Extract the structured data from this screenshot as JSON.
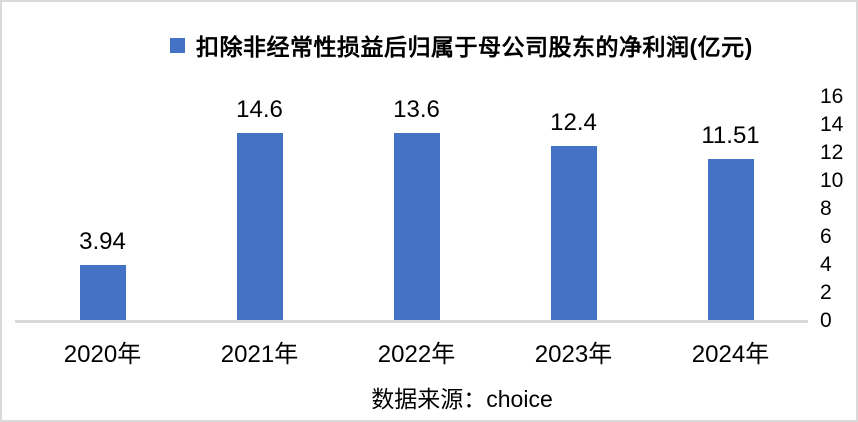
{
  "chart_data": {
    "type": "bar",
    "title": "扣除非经常性损益后归属于母公司股东的净利润(亿元)",
    "categories": [
      "2020年",
      "2021年",
      "2022年",
      "2023年",
      "2024年"
    ],
    "values": [
      3.94,
      14.6,
      13.6,
      12.4,
      11.51
    ],
    "value_labels": [
      "3.94",
      "14.6",
      "13.6",
      "12.4",
      "11.51"
    ],
    "ylim": [
      0,
      16
    ],
    "yticks": [
      0,
      2,
      4,
      6,
      8,
      10,
      12,
      14,
      16
    ],
    "ytick_side": "right",
    "grid": false,
    "legend_position": "top",
    "bar_color": "#4472C4",
    "axis_line_color": "#D9D9D9"
  },
  "source": "数据来源：choice"
}
